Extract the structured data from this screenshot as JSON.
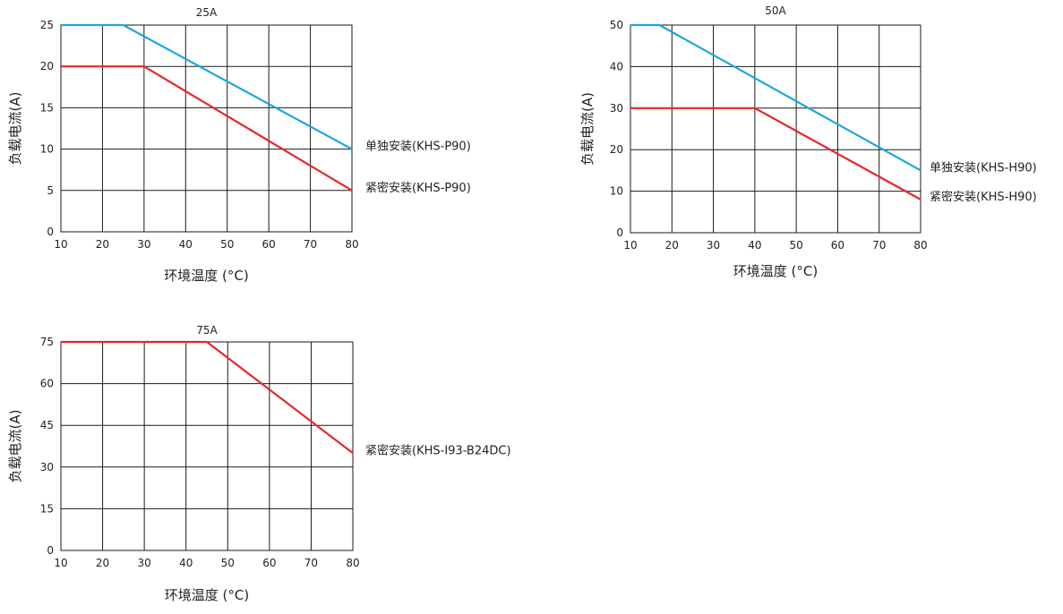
{
  "chart_data": [
    {
      "type": "line",
      "title": "25A",
      "xlabel": "环境温度 (°C)",
      "ylabel": "负载电流(A)",
      "xlim": [
        10,
        80
      ],
      "ylim": [
        0,
        25
      ],
      "xticks": [
        10,
        20,
        30,
        40,
        50,
        60,
        70,
        80
      ],
      "yticks": [
        0,
        5,
        10,
        15,
        20,
        25
      ],
      "grid": true,
      "series": [
        {
          "name": "单独安装(KHS-P90)",
          "color": "#1aa7e0",
          "x": [
            10,
            25,
            80
          ],
          "y": [
            25,
            25,
            10
          ]
        },
        {
          "name": "紧密安装(KHS-P90)",
          "color": "#e8262a",
          "x": [
            10,
            30,
            80
          ],
          "y": [
            20,
            20,
            5
          ]
        }
      ]
    },
    {
      "type": "line",
      "title": "50A",
      "xlabel": "环境温度 (°C)",
      "ylabel": "负载电流(A)",
      "xlim": [
        10,
        80
      ],
      "ylim": [
        0,
        50
      ],
      "xticks": [
        10,
        20,
        30,
        40,
        50,
        60,
        70,
        80
      ],
      "yticks": [
        0,
        10,
        20,
        30,
        40,
        50
      ],
      "grid": true,
      "series": [
        {
          "name": "单独安装(KHS-H90)",
          "color": "#1aa7e0",
          "x": [
            10,
            17,
            80
          ],
          "y": [
            50,
            50,
            15
          ]
        },
        {
          "name": "紧密安装(KHS-H90)",
          "color": "#e8262a",
          "x": [
            10,
            40,
            80
          ],
          "y": [
            30,
            30,
            8
          ]
        }
      ]
    },
    {
      "type": "line",
      "title": "75A",
      "xlabel": "环境温度 (°C)",
      "ylabel": "负载电流(A)",
      "xlim": [
        10,
        80
      ],
      "ylim": [
        0,
        75
      ],
      "xticks": [
        10,
        20,
        30,
        40,
        50,
        60,
        70,
        80
      ],
      "yticks": [
        0,
        15,
        30,
        45,
        60,
        75
      ],
      "grid": true,
      "series": [
        {
          "name": "紧密安装(KHS-I93-B24DC)",
          "color": "#e8262a",
          "x": [
            10,
            45,
            80
          ],
          "y": [
            75,
            75,
            35
          ]
        }
      ]
    }
  ]
}
